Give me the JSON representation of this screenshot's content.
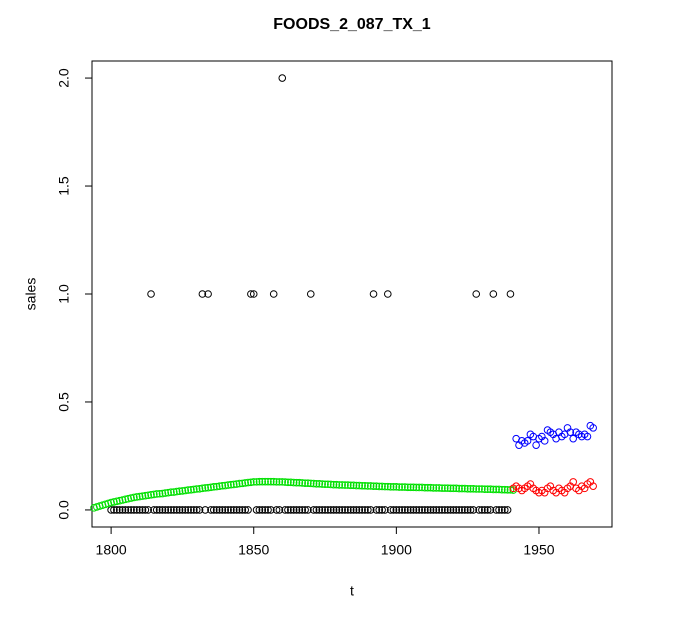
{
  "chart_data": {
    "type": "scatter",
    "title": "FOODS_2_087_TX_1",
    "x_label": "t",
    "y_label": "sales",
    "xlim": [
      1793.3,
      1975.6
    ],
    "ylim": [
      -0.079,
      2.079
    ],
    "xticks": [
      1800,
      1850,
      1900,
      1950
    ],
    "yticks": [
      {
        "value": 0,
        "label": "0.0"
      },
      0.5,
      {
        "value": 1,
        "label": "1.0"
      },
      1.5,
      {
        "value": 2,
        "label": "2.0"
      }
    ],
    "series": [
      {
        "color": "#000000",
        "x": [
          1800,
          1801,
          1802,
          1803,
          1804,
          1805,
          1806,
          1807,
          1808,
          1809,
          1810,
          1811,
          1812,
          1813,
          1814,
          1815,
          1816,
          1817,
          1818,
          1819,
          1820,
          1821,
          1822,
          1823,
          1824,
          1825,
          1826,
          1827,
          1828,
          1829,
          1830,
          1831,
          1832,
          1833,
          1834,
          1835,
          1836,
          1837,
          1838,
          1839,
          1840,
          1841,
          1842,
          1843,
          1844,
          1845,
          1846,
          1847,
          1848,
          1849,
          1850,
          1851,
          1852,
          1853,
          1854,
          1855,
          1856,
          1857,
          1858,
          1859,
          1860,
          1861,
          1862,
          1863,
          1864,
          1865,
          1866,
          1867,
          1868,
          1869,
          1870,
          1871,
          1872,
          1873,
          1874,
          1875,
          1876,
          1877,
          1878,
          1879,
          1880,
          1881,
          1882,
          1883,
          1884,
          1885,
          1886,
          1887,
          1888,
          1889,
          1890,
          1891,
          1892,
          1893,
          1894,
          1895,
          1896,
          1897,
          1898,
          1899,
          1900,
          1901,
          1902,
          1903,
          1904,
          1905,
          1906,
          1907,
          1908,
          1909,
          1910,
          1911,
          1912,
          1913,
          1914,
          1915,
          1916,
          1917,
          1918,
          1919,
          1920,
          1921,
          1922,
          1923,
          1924,
          1925,
          1926,
          1927,
          1928,
          1929,
          1930,
          1931,
          1932,
          1933,
          1934,
          1935,
          1936,
          1937,
          1938,
          1939,
          1940
        ],
        "values": [
          0,
          0,
          0,
          0,
          0,
          0,
          0,
          0,
          0,
          0,
          0,
          0,
          0,
          0,
          1,
          0,
          0,
          0,
          0,
          0,
          0,
          0,
          0,
          0,
          0,
          0,
          0,
          0,
          0,
          0,
          0,
          0,
          1,
          0,
          1,
          0,
          0,
          0,
          0,
          0,
          0,
          0,
          0,
          0,
          0,
          0,
          0,
          0,
          0,
          1,
          1,
          0,
          0,
          0,
          0,
          0,
          0,
          1,
          0,
          0,
          2,
          0,
          0,
          0,
          0,
          0,
          0,
          0,
          0,
          0,
          1,
          0,
          0,
          0,
          0,
          0,
          0,
          0,
          0,
          0,
          0,
          0,
          0,
          0,
          0,
          0,
          0,
          0,
          0,
          0,
          0,
          0,
          1,
          0,
          0,
          0,
          0,
          1,
          0,
          0,
          0,
          0,
          0,
          0,
          0,
          0,
          0,
          0,
          0,
          0,
          0,
          0,
          0,
          0,
          0,
          0,
          0,
          0,
          0,
          0,
          0,
          0,
          0,
          0,
          0,
          0,
          0,
          0,
          1,
          0,
          0,
          0,
          0,
          0,
          1,
          0,
          0,
          0,
          0,
          0,
          1
        ]
      },
      {
        "color": "#00e000",
        "x": [
          1794,
          1795,
          1796,
          1797,
          1798,
          1799,
          1800,
          1801,
          1802,
          1803,
          1804,
          1805,
          1806,
          1807,
          1808,
          1809,
          1810,
          1811,
          1812,
          1813,
          1814,
          1815,
          1816,
          1817,
          1818,
          1819,
          1820,
          1821,
          1822,
          1823,
          1824,
          1825,
          1826,
          1827,
          1828,
          1829,
          1830,
          1831,
          1832,
          1833,
          1834,
          1835,
          1836,
          1837,
          1838,
          1839,
          1840,
          1841,
          1842,
          1843,
          1844,
          1845,
          1846,
          1847,
          1848,
          1849,
          1850,
          1851,
          1852,
          1853,
          1854,
          1855,
          1856,
          1857,
          1858,
          1859,
          1860,
          1861,
          1862,
          1863,
          1864,
          1865,
          1866,
          1867,
          1868,
          1869,
          1870,
          1871,
          1872,
          1873,
          1874,
          1875,
          1876,
          1877,
          1878,
          1879,
          1880,
          1881,
          1882,
          1883,
          1884,
          1885,
          1886,
          1887,
          1888,
          1889,
          1890,
          1891,
          1892,
          1893,
          1894,
          1895,
          1896,
          1897,
          1898,
          1899,
          1900,
          1901,
          1902,
          1903,
          1904,
          1905,
          1906,
          1907,
          1908,
          1909,
          1910,
          1911,
          1912,
          1913,
          1914,
          1915,
          1916,
          1917,
          1918,
          1919,
          1920,
          1921,
          1922,
          1923,
          1924,
          1925,
          1926,
          1927,
          1928,
          1929,
          1930,
          1931,
          1932,
          1933,
          1934,
          1935,
          1936,
          1937,
          1938,
          1939,
          1940,
          1941
        ],
        "values": [
          0.01,
          0.014,
          0.018,
          0.022,
          0.026,
          0.03,
          0.034,
          0.037,
          0.04,
          0.043,
          0.046,
          0.049,
          0.052,
          0.055,
          0.058,
          0.06,
          0.062,
          0.064,
          0.066,
          0.068,
          0.07,
          0.072,
          0.074,
          0.075,
          0.076,
          0.078,
          0.08,
          0.082,
          0.083,
          0.085,
          0.087,
          0.088,
          0.09,
          0.092,
          0.093,
          0.095,
          0.097,
          0.098,
          0.1,
          0.102,
          0.103,
          0.105,
          0.107,
          0.108,
          0.11,
          0.112,
          0.113,
          0.115,
          0.117,
          0.118,
          0.12,
          0.122,
          0.123,
          0.125,
          0.127,
          0.128,
          0.13,
          0.13,
          0.131,
          0.131,
          0.131,
          0.131,
          0.131,
          0.131,
          0.13,
          0.13,
          0.13,
          0.129,
          0.128,
          0.128,
          0.127,
          0.126,
          0.126,
          0.125,
          0.124,
          0.124,
          0.123,
          0.122,
          0.121,
          0.121,
          0.12,
          0.119,
          0.119,
          0.118,
          0.117,
          0.117,
          0.116,
          0.116,
          0.115,
          0.115,
          0.114,
          0.114,
          0.113,
          0.113,
          0.112,
          0.112,
          0.111,
          0.111,
          0.11,
          0.11,
          0.109,
          0.109,
          0.108,
          0.108,
          0.107,
          0.107,
          0.107,
          0.106,
          0.106,
          0.106,
          0.105,
          0.105,
          0.105,
          0.104,
          0.104,
          0.104,
          0.103,
          0.103,
          0.103,
          0.102,
          0.102,
          0.102,
          0.101,
          0.101,
          0.101,
          0.1,
          0.1,
          0.1,
          0.099,
          0.099,
          0.099,
          0.098,
          0.098,
          0.098,
          0.097,
          0.097,
          0.097,
          0.096,
          0.096,
          0.096,
          0.095,
          0.095,
          0.095,
          0.094,
          0.094,
          0.093,
          0.093,
          0.092
        ]
      },
      {
        "color": "#ff0000",
        "x": [
          1941,
          1942,
          1943,
          1944,
          1945,
          1946,
          1947,
          1948,
          1949,
          1950,
          1951,
          1952,
          1953,
          1954,
          1955,
          1956,
          1957,
          1958,
          1959,
          1960,
          1961,
          1962,
          1963,
          1964,
          1965,
          1966,
          1967,
          1968,
          1969
        ],
        "values": [
          0.1,
          0.11,
          0.1,
          0.09,
          0.1,
          0.11,
          0.12,
          0.1,
          0.09,
          0.08,
          0.09,
          0.08,
          0.1,
          0.11,
          0.09,
          0.08,
          0.1,
          0.09,
          0.08,
          0.1,
          0.11,
          0.13,
          0.1,
          0.09,
          0.11,
          0.1,
          0.12,
          0.13,
          0.11
        ]
      },
      {
        "color": "#0000ff",
        "x": [
          1942,
          1943,
          1944,
          1945,
          1946,
          1947,
          1948,
          1949,
          1950,
          1951,
          1952,
          1953,
          1954,
          1955,
          1956,
          1957,
          1958,
          1959,
          1960,
          1961,
          1962,
          1963,
          1964,
          1965,
          1966,
          1967,
          1968,
          1969
        ],
        "values": [
          0.33,
          0.3,
          0.32,
          0.31,
          0.32,
          0.35,
          0.34,
          0.3,
          0.33,
          0.34,
          0.32,
          0.37,
          0.36,
          0.35,
          0.33,
          0.36,
          0.34,
          0.35,
          0.38,
          0.36,
          0.33,
          0.36,
          0.35,
          0.34,
          0.35,
          0.34,
          0.39,
          0.38
        ]
      }
    ]
  }
}
